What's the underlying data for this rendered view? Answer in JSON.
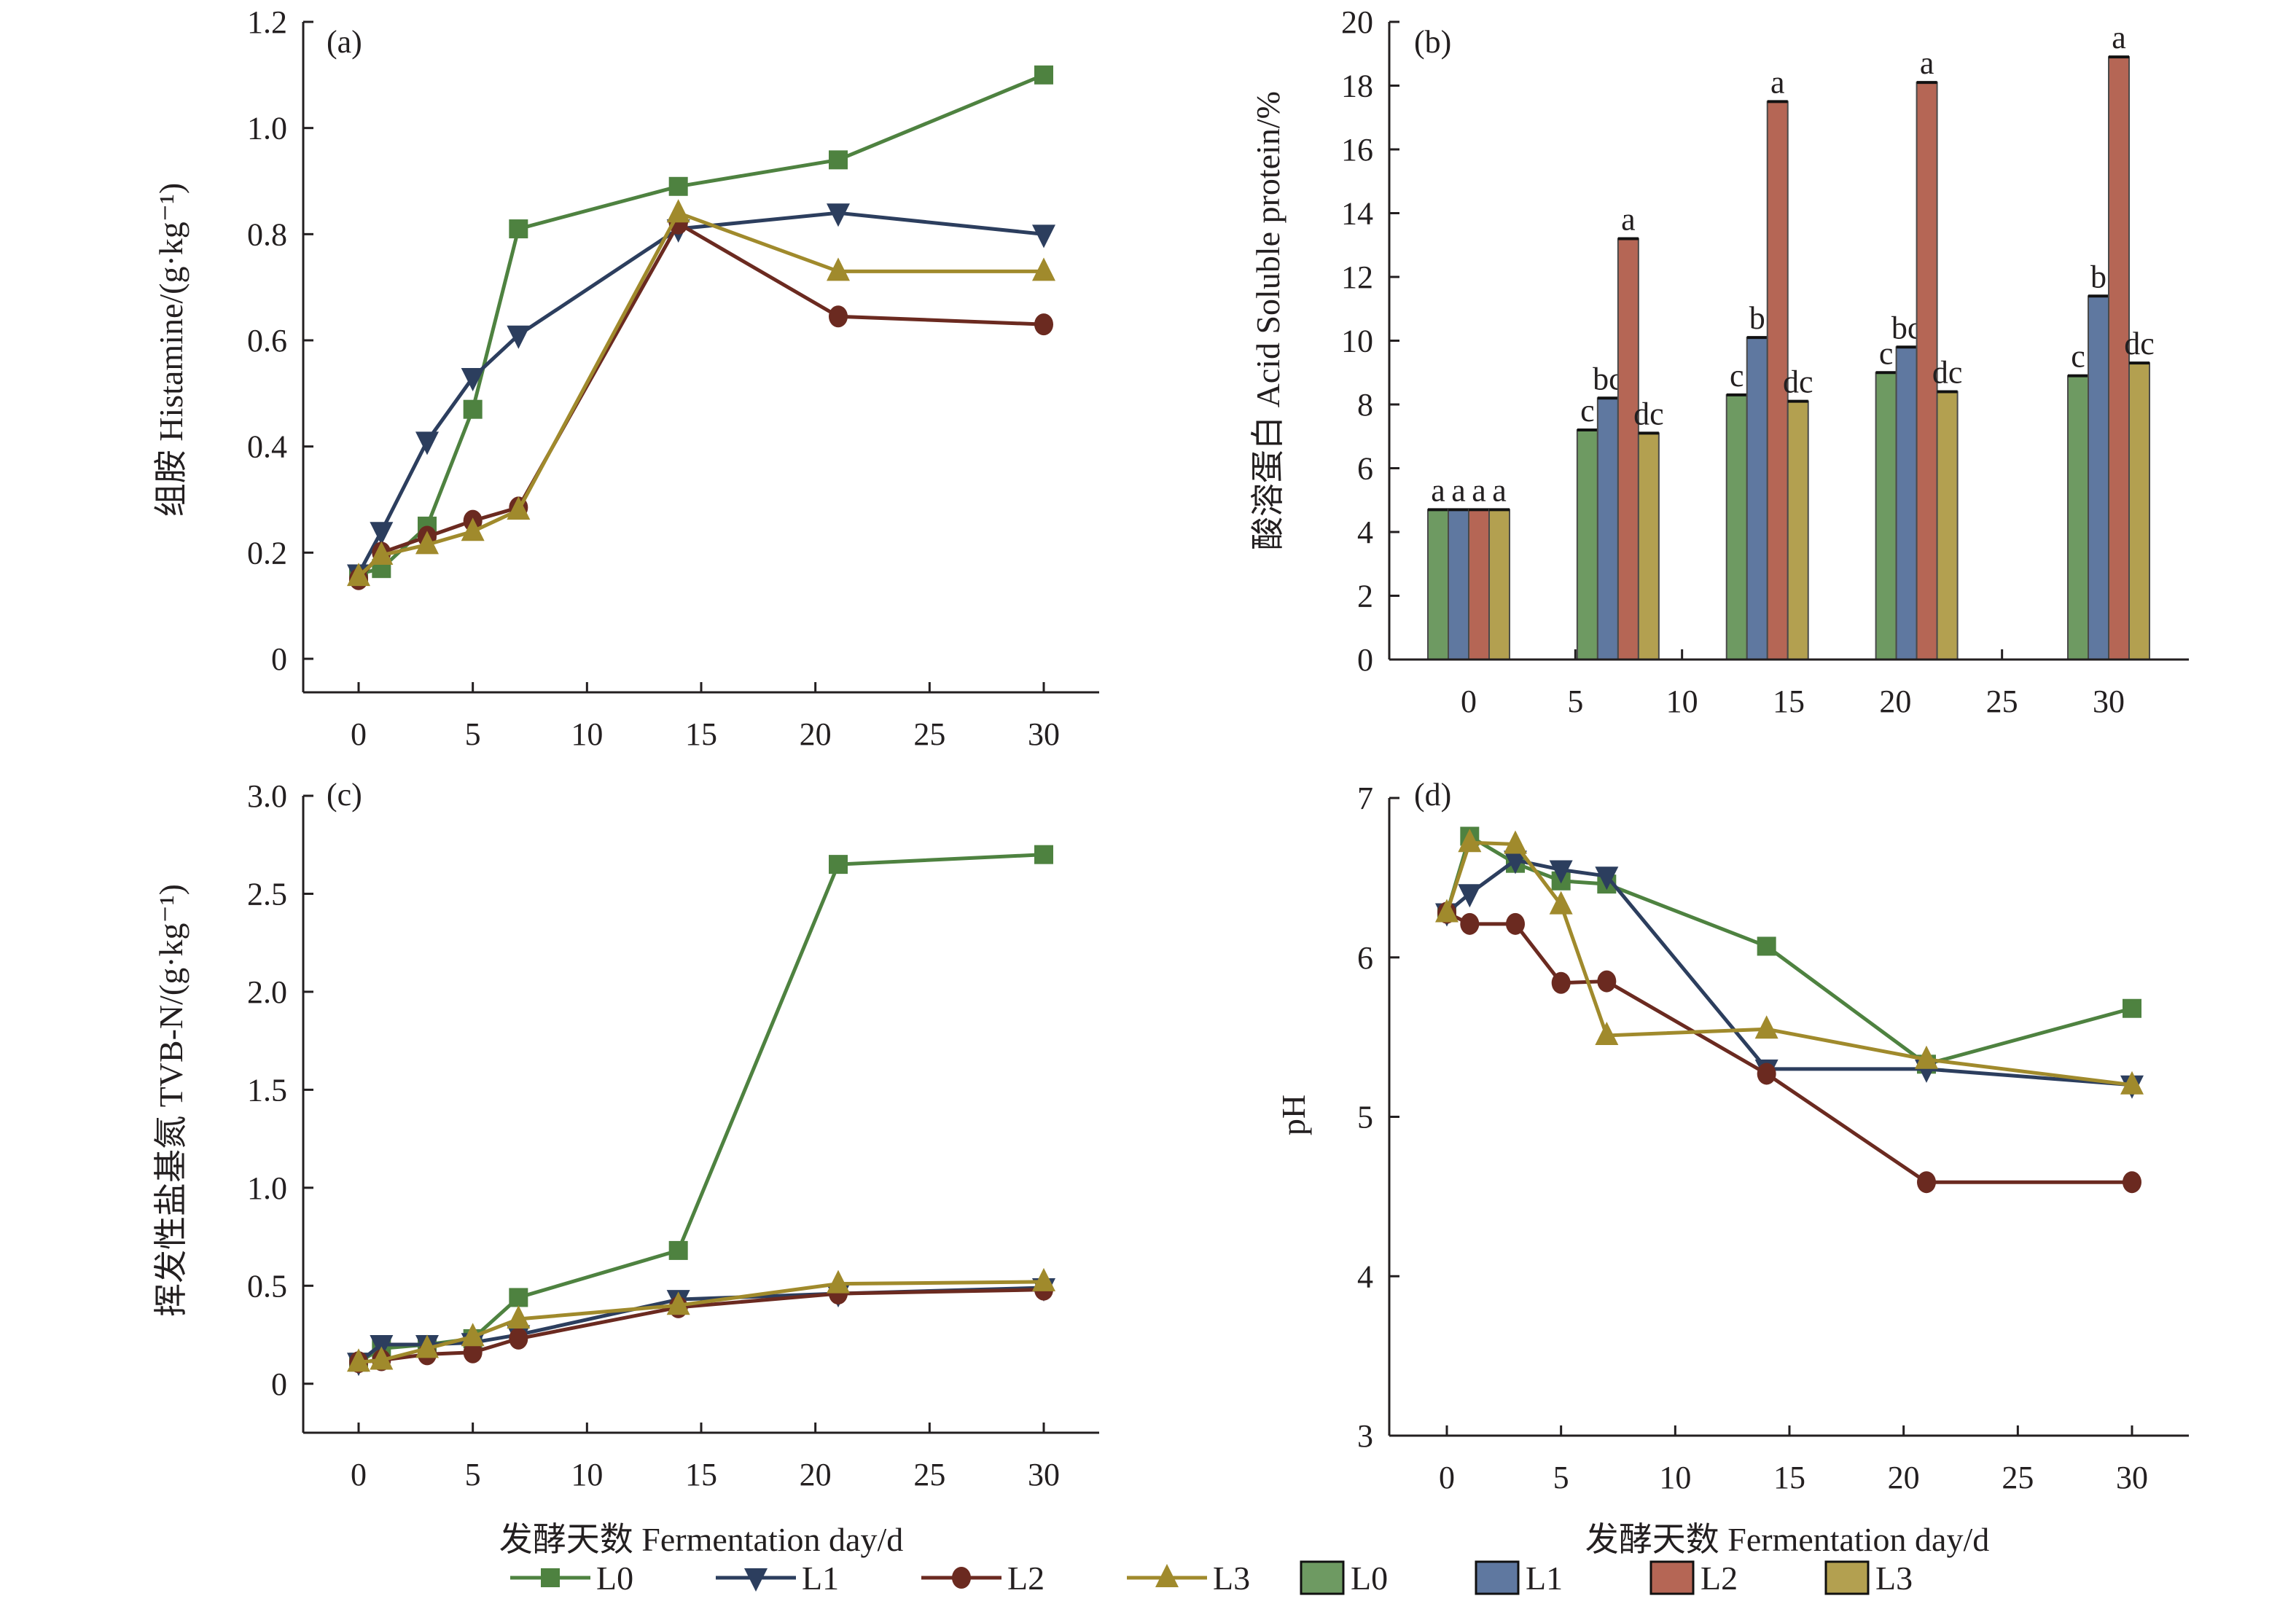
{
  "colors": {
    "L0_line": "#4e8240",
    "L1_line": "#2c3e5e",
    "L2_line": "#6b2a20",
    "L3_line": "#a08a2c",
    "L0_bar": "#6e9a62",
    "L1_bar": "#5f78a0",
    "L2_bar": "#b56655",
    "L3_bar": "#b3a050"
  },
  "legend": {
    "line_items": [
      {
        "name": "L0",
        "marker": "square"
      },
      {
        "name": "L1",
        "marker": "triangle-down"
      },
      {
        "name": "L2",
        "marker": "circle"
      },
      {
        "name": "L3",
        "marker": "triangle-up"
      }
    ],
    "bar_items": [
      {
        "name": "L0"
      },
      {
        "name": "L1"
      },
      {
        "name": "L2"
      },
      {
        "name": "L3"
      }
    ]
  },
  "chart_data": [
    {
      "id": "a",
      "panel_label": "(a)",
      "type": "line",
      "title": "",
      "xlabel": "",
      "ylabel": "组胺 Histamine/(g·kg⁻¹)",
      "xlim": [
        -2.5,
        32.5
      ],
      "ylim": [
        0,
        1.2
      ],
      "xticks": [
        0,
        5,
        10,
        15,
        20,
        25,
        30
      ],
      "yticks": [
        0,
        0.2,
        0.4,
        0.6,
        0.8,
        1.0,
        1.2
      ],
      "ytick_labels": [
        "0",
        "0.2",
        "0.4",
        "0.6",
        "0.8",
        "1.0",
        "1.2"
      ],
      "x": [
        0,
        1,
        3,
        5,
        7,
        14,
        21,
        30
      ],
      "series": [
        {
          "name": "L0",
          "marker": "square",
          "values": [
            0.16,
            0.17,
            0.25,
            0.47,
            0.81,
            0.89,
            0.94,
            1.1
          ]
        },
        {
          "name": "L1",
          "marker": "triangle-down",
          "values": [
            0.16,
            0.24,
            0.41,
            0.53,
            0.61,
            0.81,
            0.84,
            0.8
          ]
        },
        {
          "name": "L2",
          "marker": "circle",
          "values": [
            0.15,
            0.2,
            0.23,
            0.26,
            0.285,
            0.82,
            0.645,
            0.63
          ]
        },
        {
          "name": "L3",
          "marker": "triangle-up",
          "values": [
            0.155,
            0.195,
            0.215,
            0.24,
            0.28,
            0.84,
            0.73,
            0.73
          ]
        }
      ]
    },
    {
      "id": "b",
      "panel_label": "(b)",
      "type": "bar",
      "title": "",
      "xlabel": "",
      "ylabel": "酸溶蛋白 Acid Soluble protein/%",
      "xlim": [
        -2.5,
        32.5
      ],
      "ylim": [
        0,
        20
      ],
      "xticks": [
        0,
        5,
        10,
        15,
        20,
        25,
        30
      ],
      "yticks": [
        0,
        2,
        4,
        6,
        8,
        10,
        12,
        14,
        16,
        18,
        20
      ],
      "categories": [
        0,
        7,
        14,
        21,
        30
      ],
      "series": [
        {
          "name": "L0",
          "values": [
            4.7,
            7.2,
            8.3,
            9.0,
            8.9
          ],
          "labels": [
            "a",
            "c",
            "c",
            "c",
            "c"
          ]
        },
        {
          "name": "L1",
          "values": [
            4.7,
            8.2,
            10.1,
            9.8,
            11.4
          ],
          "labels": [
            "a",
            "bc",
            "b",
            "bc",
            "b"
          ]
        },
        {
          "name": "L2",
          "values": [
            4.7,
            13.2,
            17.5,
            18.1,
            18.9
          ],
          "labels": [
            "a",
            "a",
            "a",
            "a",
            "a"
          ]
        },
        {
          "name": "L3",
          "values": [
            4.7,
            7.1,
            8.1,
            8.4,
            9.3
          ],
          "labels": [
            "a",
            "dc",
            "dc",
            "dc",
            "dc"
          ]
        }
      ]
    },
    {
      "id": "c",
      "panel_label": "(c)",
      "type": "line",
      "title": "",
      "xlabel": "发酵天数 Fermentation day/d",
      "ylabel": "挥发性盐基氮 TVB-N/(g·kg⁻¹)",
      "xlim": [
        -2.5,
        32.5
      ],
      "ylim": [
        -0.25,
        3.0
      ],
      "xticks": [
        0,
        5,
        10,
        15,
        20,
        25,
        30
      ],
      "yticks": [
        0,
        0.5,
        1.0,
        1.5,
        2.0,
        2.5,
        3.0
      ],
      "ytick_labels": [
        "0",
        "0.5",
        "1.0",
        "1.5",
        "2.0",
        "2.5",
        "3.0"
      ],
      "x": [
        0,
        1,
        3,
        5,
        7,
        14,
        21,
        30
      ],
      "series": [
        {
          "name": "L0",
          "marker": "square",
          "values": [
            0.11,
            0.18,
            0.2,
            0.23,
            0.44,
            0.68,
            2.65,
            2.7
          ]
        },
        {
          "name": "L1",
          "marker": "triangle-down",
          "values": [
            0.11,
            0.2,
            0.2,
            0.21,
            0.25,
            0.43,
            0.46,
            0.49
          ]
        },
        {
          "name": "L2",
          "marker": "circle",
          "values": [
            0.11,
            0.12,
            0.15,
            0.16,
            0.23,
            0.39,
            0.46,
            0.48
          ]
        },
        {
          "name": "L3",
          "marker": "triangle-up",
          "values": [
            0.11,
            0.12,
            0.18,
            0.24,
            0.33,
            0.4,
            0.51,
            0.52
          ]
        }
      ]
    },
    {
      "id": "d",
      "panel_label": "(d)",
      "type": "line",
      "title": "",
      "xlabel": "发酵天数 Fermentation day/d",
      "ylabel": "pH",
      "xlim": [
        -2.5,
        32.5
      ],
      "ylim": [
        3,
        7
      ],
      "xticks": [
        0,
        5,
        10,
        15,
        20,
        25,
        30
      ],
      "yticks": [
        3,
        4,
        5,
        6,
        7
      ],
      "ytick_labels": [
        "3",
        "4",
        "5",
        "6",
        "7"
      ],
      "x": [
        0,
        1,
        3,
        5,
        7,
        14,
        21,
        30
      ],
      "series": [
        {
          "name": "L0",
          "marker": "square",
          "values": [
            6.28,
            6.76,
            6.59,
            6.48,
            6.46,
            6.07,
            5.33,
            5.68
          ]
        },
        {
          "name": "L1",
          "marker": "triangle-down",
          "values": [
            6.28,
            6.4,
            6.61,
            6.55,
            6.51,
            5.3,
            5.3,
            5.2
          ]
        },
        {
          "name": "L2",
          "marker": "circle",
          "values": [
            6.28,
            6.21,
            6.21,
            5.84,
            5.85,
            5.27,
            4.59,
            4.59
          ]
        },
        {
          "name": "L3",
          "marker": "triangle-up",
          "values": [
            6.28,
            6.72,
            6.71,
            6.33,
            5.51,
            5.55,
            5.36,
            5.2
          ]
        }
      ]
    }
  ]
}
